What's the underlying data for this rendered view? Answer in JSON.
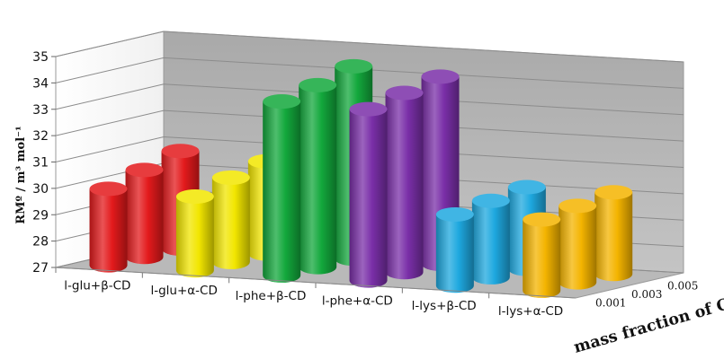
{
  "chart_data": {
    "type": "bar",
    "categories": [
      "l-glu+β-CD",
      "l-glu+α-CD",
      "l-phe+β-CD",
      "l-phe+α-CD",
      "l-lys+β-CD",
      "l-lys+α-CD"
    ],
    "depth_labels": [
      "0.001",
      "0.003",
      "0.005"
    ],
    "series": [
      {
        "name": "0.001",
        "values": [
          29.9,
          29.8,
          33.6,
          33.5,
          29.7,
          29.7
        ]
      },
      {
        "name": "0.003",
        "values": [
          30.3,
          30.2,
          33.9,
          33.8,
          29.9,
          29.9
        ]
      },
      {
        "name": "0.005",
        "values": [
          30.7,
          30.5,
          34.3,
          34.1,
          30.1,
          30.1
        ]
      }
    ],
    "colors": [
      "#e31a1c",
      "#f2e600",
      "#13a83c",
      "#7a2fa8",
      "#1ea8df",
      "#f4b400"
    ],
    "ylim": [
      27,
      35
    ],
    "yticks": [
      27,
      28,
      29,
      30,
      31,
      32,
      33,
      34,
      35
    ],
    "ylabel": "RMº / m³ mol⁻¹",
    "zlabel": "mass fraction of CD",
    "grid": true
  }
}
